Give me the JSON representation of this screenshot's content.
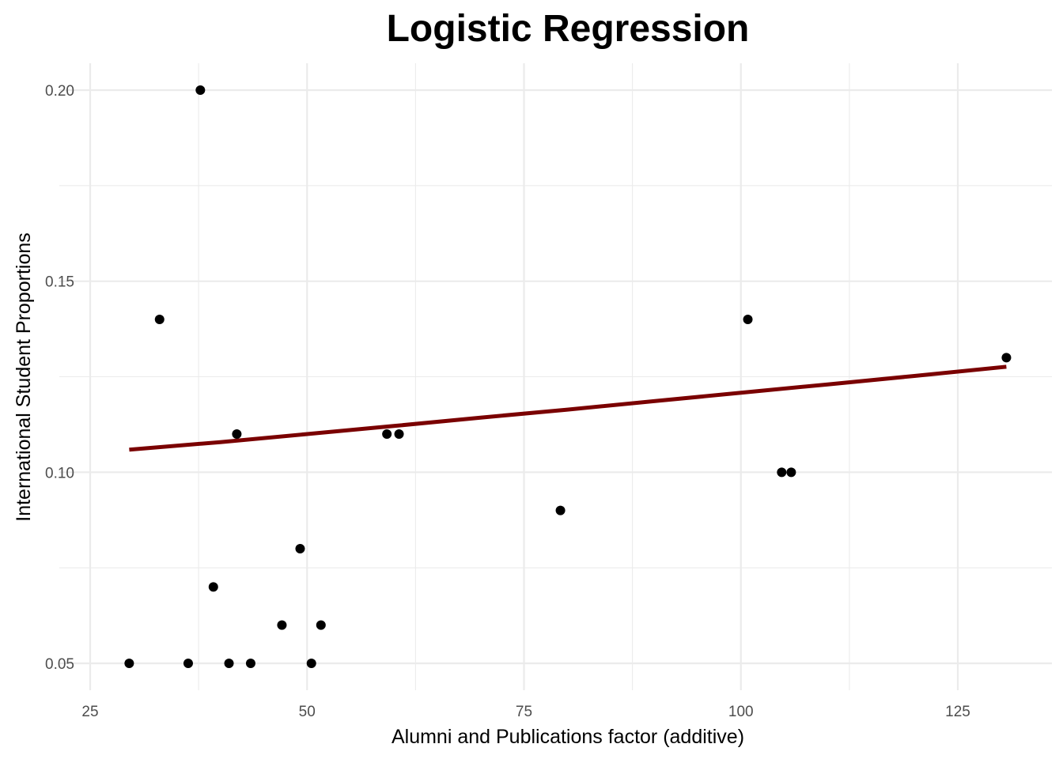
{
  "chart_data": {
    "type": "scatter",
    "title": "Logistic Regression",
    "xlabel": "Alumni and Publications factor (additive)",
    "ylabel": "International Student Proportions",
    "xlim": [
      25,
      136
    ],
    "ylim": [
      0.044,
      0.207
    ],
    "x_ticks": [
      25,
      50,
      75,
      100,
      125
    ],
    "x_tick_labels": [
      "25",
      "50",
      "75",
      "100",
      "125"
    ],
    "x_minor_ticks": [
      37.5,
      62.5,
      87.5,
      112.5
    ],
    "y_ticks": [
      0.05,
      0.1,
      0.15,
      0.2
    ],
    "y_tick_labels": [
      "0.05",
      "0.10",
      "0.15",
      "0.20"
    ],
    "y_minor_ticks": [
      0.075,
      0.125,
      0.175
    ],
    "grid": true,
    "series": [
      {
        "kind": "points",
        "color": "#000000",
        "x": [
          29.5,
          33.0,
          36.3,
          37.7,
          39.2,
          41.0,
          41.9,
          43.5,
          47.1,
          49.2,
          50.5,
          51.6,
          59.2,
          60.6,
          79.2,
          100.8,
          104.7,
          105.8,
          130.6
        ],
        "y": [
          0.05,
          0.14,
          0.05,
          0.2,
          0.07,
          0.05,
          0.11,
          0.05,
          0.06,
          0.08,
          0.05,
          0.06,
          0.11,
          0.11,
          0.09,
          0.14,
          0.1,
          0.1,
          0.13
        ]
      },
      {
        "kind": "fitted-line",
        "color": "#7a0000",
        "x": [
          29.5,
          40,
          50,
          60,
          70,
          80,
          90,
          100,
          110,
          120,
          130.6
        ],
        "y": [
          0.1059,
          0.1079,
          0.11,
          0.1121,
          0.1143,
          0.1164,
          0.1186,
          0.1208,
          0.123,
          0.1252,
          0.1276
        ]
      }
    ]
  }
}
